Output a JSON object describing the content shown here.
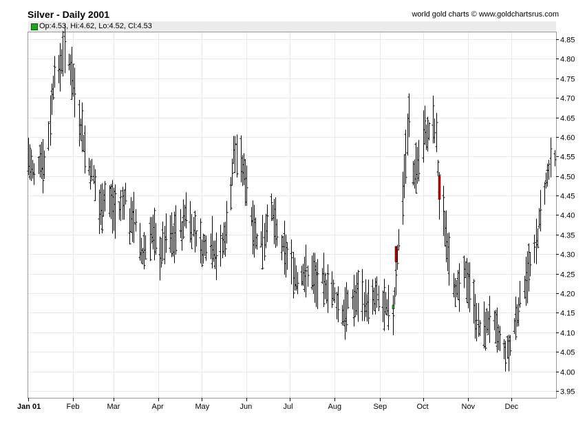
{
  "header": {
    "title": "Silver - Daily 2001",
    "credit": "world gold charts © www.goldchartsrus.com",
    "ohlc": "Op:4.53, Hi:4.62, Lo:4.52, Cl:4.53"
  },
  "colors": {
    "bar": "#000000",
    "grid": "#e8e8e8",
    "up_highlight": "#22a022",
    "down_highlight": "#cc0000",
    "legend_swatch": "#22a022"
  },
  "chart_data": {
    "type": "ohlc",
    "title": "Silver - Daily 2001",
    "xlabel": "",
    "ylabel": "",
    "ylim": [
      3.95,
      4.85
    ],
    "y_ticks": [
      "3.95",
      "4.00",
      "4.05",
      "4.10",
      "4.15",
      "4.20",
      "4.25",
      "4.30",
      "4.35",
      "4.40",
      "4.45",
      "4.50",
      "4.55",
      "4.60",
      "4.65",
      "4.70",
      "4.75",
      "4.80",
      "4.85"
    ],
    "x_ticks": [
      "Jan 01",
      "Feb",
      "Mar",
      "Apr",
      "May",
      "Jun",
      "Jul",
      "Aug",
      "Sep",
      "Oct",
      "Nov",
      "Dec"
    ],
    "x_tick_days": [
      0,
      31,
      59,
      90,
      120,
      151,
      181,
      212,
      243,
      273,
      304,
      334
    ],
    "x_range_days": [
      0,
      365
    ],
    "grid": true,
    "anchors": [
      [
        0,
        4.55
      ],
      [
        4,
        4.5
      ],
      [
        8,
        4.55
      ],
      [
        12,
        4.52
      ],
      [
        15,
        4.65
      ],
      [
        18,
        4.78
      ],
      [
        21,
        4.76
      ],
      [
        24,
        4.82
      ],
      [
        27,
        4.8
      ],
      [
        30,
        4.77
      ],
      [
        34,
        4.66
      ],
      [
        37,
        4.62
      ],
      [
        40,
        4.54
      ],
      [
        45,
        4.5
      ],
      [
        49,
        4.41
      ],
      [
        53,
        4.45
      ],
      [
        57,
        4.43
      ],
      [
        61,
        4.4
      ],
      [
        64,
        4.42
      ],
      [
        67,
        4.45
      ],
      [
        70,
        4.38
      ],
      [
        73,
        4.4
      ],
      [
        76,
        4.33
      ],
      [
        79,
        4.3
      ],
      [
        82,
        4.33
      ],
      [
        85,
        4.36
      ],
      [
        88,
        4.33
      ],
      [
        91,
        4.3
      ],
      [
        94,
        4.33
      ],
      [
        97,
        4.36
      ],
      [
        100,
        4.33
      ],
      [
        103,
        4.38
      ],
      [
        106,
        4.36
      ],
      [
        109,
        4.42
      ],
      [
        112,
        4.38
      ],
      [
        115,
        4.36
      ],
      [
        118,
        4.33
      ],
      [
        121,
        4.31
      ],
      [
        124,
        4.34
      ],
      [
        127,
        4.33
      ],
      [
        130,
        4.3
      ],
      [
        133,
        4.31
      ],
      [
        136,
        4.35
      ],
      [
        139,
        4.42
      ],
      [
        142,
        4.56
      ],
      [
        145,
        4.55
      ],
      [
        148,
        4.52
      ],
      [
        151,
        4.48
      ],
      [
        154,
        4.4
      ],
      [
        157,
        4.35
      ],
      [
        160,
        4.33
      ],
      [
        163,
        4.34
      ],
      [
        166,
        4.42
      ],
      [
        169,
        4.4
      ],
      [
        172,
        4.35
      ],
      [
        175,
        4.32
      ],
      [
        178,
        4.3
      ],
      [
        181,
        4.28
      ],
      [
        184,
        4.25
      ],
      [
        187,
        4.23
      ],
      [
        190,
        4.26
      ],
      [
        193,
        4.24
      ],
      [
        196,
        4.26
      ],
      [
        199,
        4.22
      ],
      [
        202,
        4.24
      ],
      [
        205,
        4.21
      ],
      [
        208,
        4.23
      ],
      [
        211,
        4.2
      ],
      [
        214,
        4.17
      ],
      [
        217,
        4.15
      ],
      [
        220,
        4.16
      ],
      [
        223,
        4.19
      ],
      [
        226,
        4.18
      ],
      [
        229,
        4.21
      ],
      [
        232,
        4.18
      ],
      [
        235,
        4.17
      ],
      [
        238,
        4.18
      ],
      [
        241,
        4.19
      ],
      [
        244,
        4.17
      ],
      [
        247,
        4.16
      ],
      [
        249,
        4.15
      ],
      [
        252,
        4.15
      ],
      [
        255,
        4.3
      ],
      [
        258,
        4.4
      ],
      [
        261,
        4.55
      ],
      [
        263,
        4.65
      ],
      [
        265,
        4.5
      ],
      [
        268,
        4.52
      ],
      [
        271,
        4.55
      ],
      [
        274,
        4.62
      ],
      [
        276,
        4.6
      ],
      [
        279,
        4.65
      ],
      [
        282,
        4.6
      ],
      [
        284,
        4.45
      ],
      [
        287,
        4.4
      ],
      [
        290,
        4.32
      ],
      [
        293,
        4.25
      ],
      [
        296,
        4.2
      ],
      [
        299,
        4.22
      ],
      [
        302,
        4.25
      ],
      [
        305,
        4.22
      ],
      [
        308,
        4.17
      ],
      [
        311,
        4.12
      ],
      [
        314,
        4.1
      ],
      [
        317,
        4.12
      ],
      [
        320,
        4.15
      ],
      [
        323,
        4.1
      ],
      [
        326,
        4.08
      ],
      [
        329,
        4.05
      ],
      [
        332,
        4.05
      ],
      [
        335,
        4.1
      ],
      [
        338,
        4.15
      ],
      [
        341,
        4.2
      ],
      [
        344,
        4.24
      ],
      [
        347,
        4.27
      ],
      [
        350,
        4.3
      ],
      [
        353,
        4.38
      ],
      [
        356,
        4.45
      ],
      [
        359,
        4.5
      ],
      [
        362,
        4.55
      ],
      [
        365,
        4.53
      ]
    ],
    "highlights": [
      {
        "day": 254,
        "open": 4.32,
        "close": 4.28,
        "direction": "down"
      },
      {
        "day": 284,
        "open": 4.5,
        "close": 4.44,
        "direction": "down"
      },
      {
        "day": 252,
        "open": 4.16,
        "close": 4.17,
        "direction": "up"
      }
    ]
  }
}
